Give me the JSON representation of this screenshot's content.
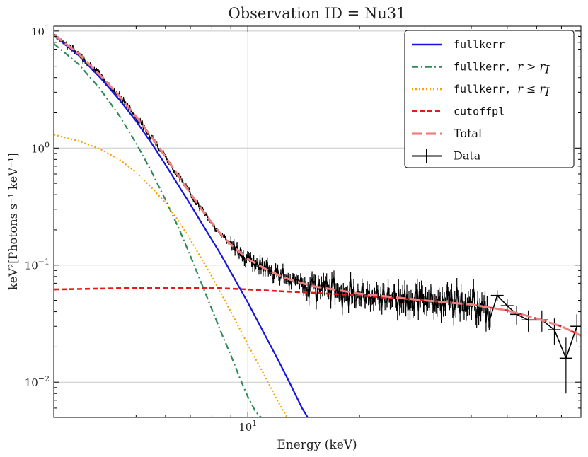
{
  "chart_data": {
    "type": "line",
    "title": "Observation ID = Nu31",
    "xlabel": "Energy (keV)",
    "ylabel": "keV²[Photons s⁻¹ keV⁻¹]",
    "xscale": "log",
    "yscale": "log",
    "xlim": [
      3.0,
      79.0
    ],
    "ylim": [
      0.005,
      11.0
    ],
    "x_tick_labels": [
      {
        "value": 10,
        "label": "10¹"
      }
    ],
    "y_tick_labels": [
      {
        "value": 0.01,
        "label": "10⁻²"
      },
      {
        "value": 0.1,
        "label": "10⁻¹"
      },
      {
        "value": 1,
        "label": "10⁰"
      },
      {
        "value": 10,
        "label": "10¹"
      }
    ],
    "grid": true,
    "legend_position": "top-right",
    "series": [
      {
        "name": "fullkerr",
        "color": "#1515e0",
        "style": "solid",
        "x": [
          3.0,
          3.5,
          4.0,
          4.5,
          5.0,
          5.5,
          6.0,
          6.5,
          7.0,
          7.5,
          8.0,
          8.5,
          9.0,
          10.0,
          11.0,
          12.0,
          13.0,
          14.0,
          15.0
        ],
        "y": [
          9.2,
          6.2,
          4.0,
          2.6,
          1.7,
          1.1,
          0.72,
          0.48,
          0.33,
          0.23,
          0.165,
          0.12,
          0.087,
          0.048,
          0.027,
          0.016,
          0.0097,
          0.006,
          0.0042
        ]
      },
      {
        "name": "fullkerr, r > r_I",
        "color": "#2e8b57",
        "style": "dashdot",
        "x": [
          3.0,
          3.5,
          4.0,
          4.5,
          5.0,
          5.5,
          6.0,
          6.5,
          7.0,
          7.5,
          8.0,
          8.5,
          9.0,
          9.5,
          10.0,
          10.5,
          11.0
        ],
        "y": [
          7.8,
          5.2,
          3.2,
          1.9,
          1.1,
          0.63,
          0.36,
          0.21,
          0.12,
          0.07,
          0.042,
          0.026,
          0.017,
          0.011,
          0.0075,
          0.0056,
          0.0048
        ]
      },
      {
        "name": "fullkerr, r ≤ r_I",
        "color": "#f4a300",
        "style": "dotted",
        "x": [
          3.0,
          3.5,
          4.0,
          4.5,
          5.0,
          5.5,
          6.0,
          6.5,
          7.0,
          8.0,
          9.0,
          10.0,
          11.0,
          12.0,
          13.0
        ],
        "y": [
          1.3,
          1.15,
          0.98,
          0.8,
          0.62,
          0.46,
          0.34,
          0.24,
          0.165,
          0.08,
          0.04,
          0.021,
          0.012,
          0.007,
          0.0045
        ]
      },
      {
        "name": "cutoffpl",
        "color": "#e31a1c",
        "style": "dashed",
        "x": [
          3.0,
          4.0,
          5.0,
          6.0,
          7.0,
          8.0,
          10.0,
          12.0,
          15.0,
          20.0,
          25.0,
          30.0,
          40.0,
          50.0,
          60.0,
          70.0,
          79.0
        ],
        "y": [
          0.062,
          0.063,
          0.064,
          0.064,
          0.064,
          0.064,
          0.062,
          0.06,
          0.058,
          0.055,
          0.052,
          0.05,
          0.046,
          0.041,
          0.035,
          0.03,
          0.025
        ]
      },
      {
        "name": "Total",
        "color": "#f08080",
        "style": "longdash",
        "x": [
          3.0,
          3.5,
          4.0,
          4.5,
          5.0,
          5.5,
          6.0,
          6.5,
          7.0,
          7.5,
          8.0,
          8.5,
          9.0,
          10.0,
          11.0,
          12.0,
          13.0,
          15.0,
          17.0,
          20.0,
          25.0,
          30.0,
          40.0,
          50.0,
          60.0,
          70.0,
          79.0
        ],
        "y": [
          9.3,
          6.4,
          4.2,
          2.8,
          1.85,
          1.25,
          0.84,
          0.58,
          0.41,
          0.3,
          0.23,
          0.18,
          0.15,
          0.113,
          0.095,
          0.083,
          0.075,
          0.066,
          0.062,
          0.057,
          0.053,
          0.05,
          0.046,
          0.041,
          0.035,
          0.03,
          0.025
        ]
      }
    ],
    "data_series": {
      "name": "Data",
      "color": "#000000",
      "style": "errorbar",
      "x_start": 3.0,
      "x_end": 45.0,
      "n_points": 420,
      "tail_points": {
        "x": [
          47.0,
          50.0,
          53.0,
          57.0,
          62.0,
          67.0,
          72.0,
          77.0
        ],
        "y": [
          0.055,
          0.045,
          0.038,
          0.034,
          0.034,
          0.028,
          0.016,
          0.03
        ],
        "yerr_low": [
          0.006,
          0.006,
          0.007,
          0.007,
          0.007,
          0.007,
          0.008,
          0.008
        ],
        "yerr_high": [
          0.006,
          0.006,
          0.007,
          0.007,
          0.007,
          0.007,
          0.008,
          0.008
        ]
      }
    }
  }
}
